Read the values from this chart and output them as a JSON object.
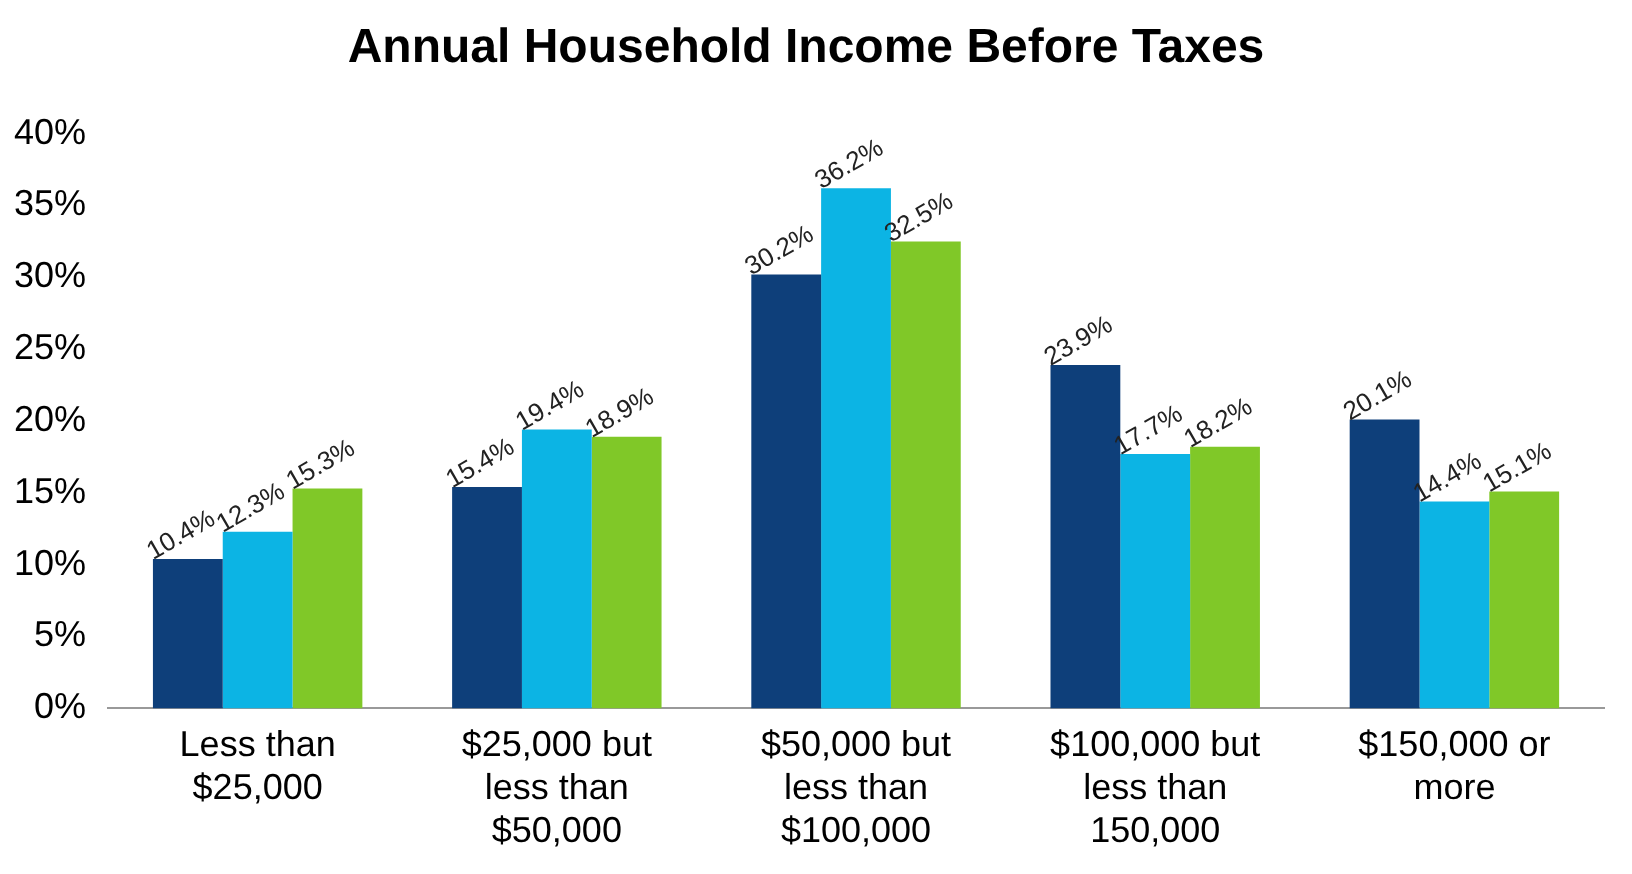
{
  "chart_data": {
    "type": "bar",
    "title": "Annual Household Income Before Taxes",
    "categories": [
      "Less than $25,000",
      "$25,000 but less than $50,000",
      "$50,000 but less than $100,000",
      "$100,000 but less than 150,000",
      "$150,000 or more"
    ],
    "series": [
      {
        "color": "#0e3f7a",
        "values": [
          10.4,
          15.4,
          30.2,
          23.9,
          20.1
        ],
        "value_labels": [
          "10.4%",
          "15.4%",
          "30.2%",
          "23.9%",
          "20.1%"
        ]
      },
      {
        "color": "#0cb4e4",
        "values": [
          12.3,
          19.4,
          36.2,
          17.7,
          14.4
        ],
        "value_labels": [
          "12.3%",
          "19.4%",
          "36.2%",
          "17.7%",
          "14.4%"
        ]
      },
      {
        "color": "#80c828",
        "values": [
          15.3,
          18.9,
          32.5,
          18.2,
          15.1
        ],
        "value_labels": [
          "15.3%",
          "18.9%",
          "32.5%",
          "18.2%",
          "15.1%"
        ]
      }
    ],
    "ylim": [
      0,
      40
    ],
    "yticks": [
      {
        "value": 0,
        "label": "0%"
      },
      {
        "value": 5,
        "label": "5%"
      },
      {
        "value": 10,
        "label": "10%"
      },
      {
        "value": 15,
        "label": "15%"
      },
      {
        "value": 20,
        "label": "20%"
      },
      {
        "value": 25,
        "label": "25%"
      },
      {
        "value": 30,
        "label": "30%"
      },
      {
        "value": 35,
        "label": "35%"
      },
      {
        "value": 40,
        "label": "40%"
      }
    ],
    "grid": false,
    "legend": false
  }
}
